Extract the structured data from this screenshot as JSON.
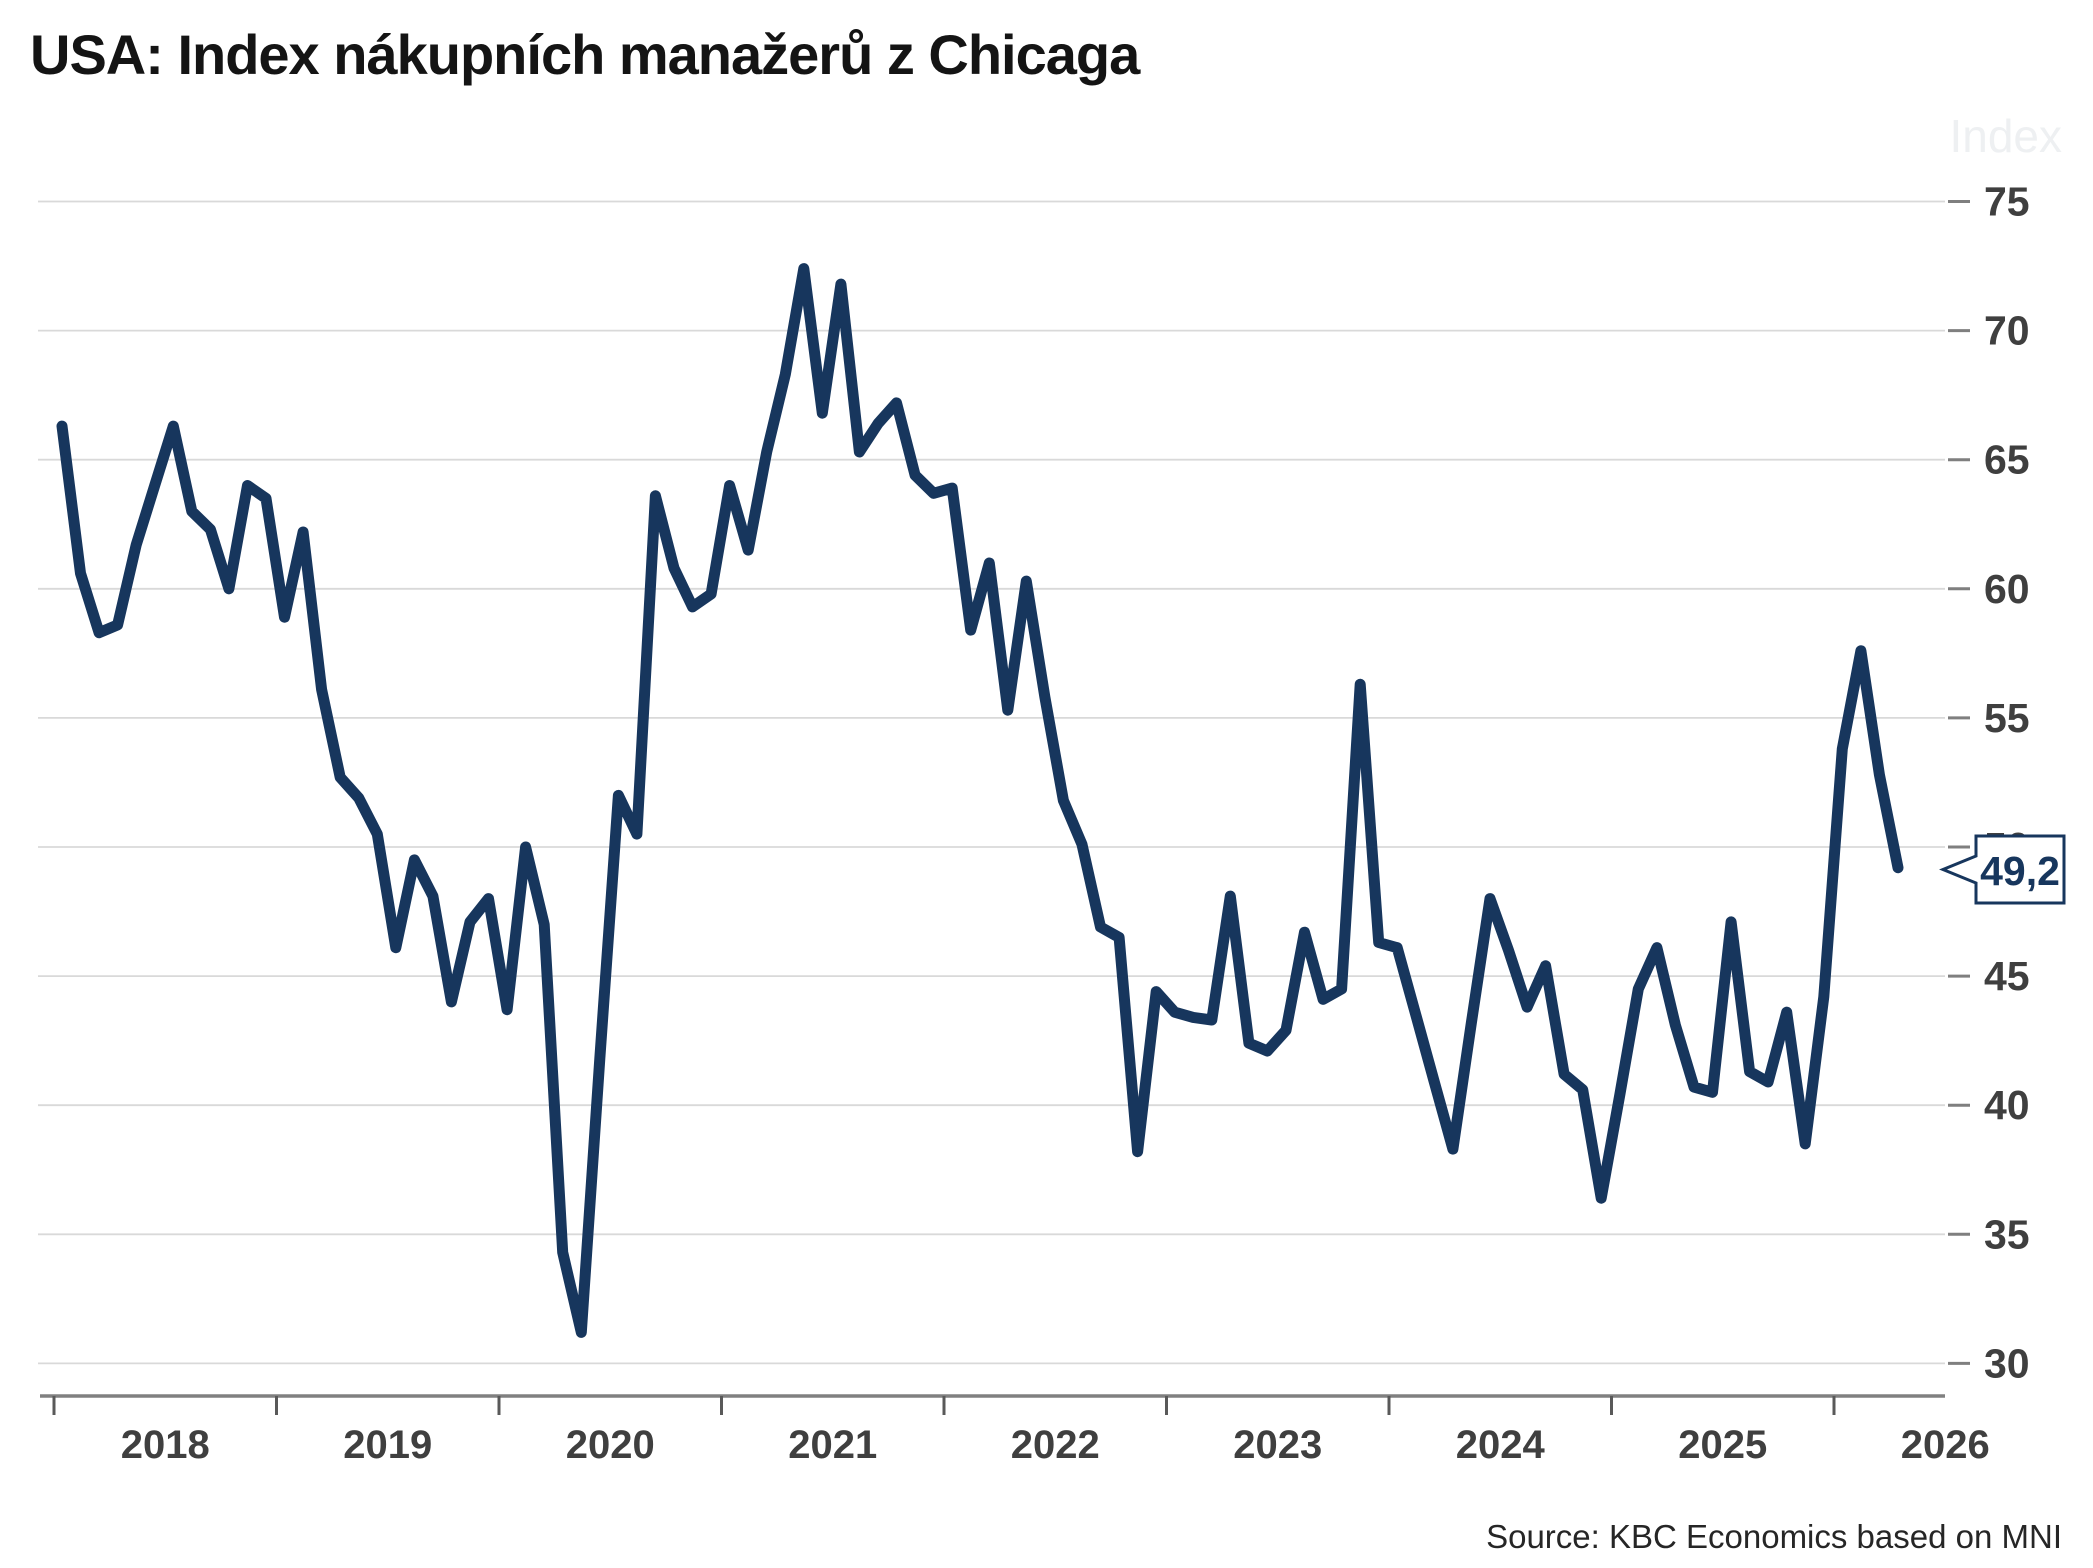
{
  "header": {
    "title": "USA: Index nákupních manažerů z Chicaga"
  },
  "chart": {
    "axis_watermark": "Index",
    "callout_label": "49,2",
    "source_text": "Source: KBC Economics based on MNI",
    "colors": {
      "line": "#17365D",
      "grid": "#D9D9D9",
      "axis": "#808080",
      "tick": "#595959",
      "labels": "#3F3F3F",
      "callout_border": "#17365D",
      "callout_fill": "#FFFFFF"
    }
  },
  "chart_data": {
    "type": "line",
    "title": "USA: Index nákupních manažerů z Chicaga",
    "ylabel": "Index",
    "xlabel": "",
    "frequency": "monthly",
    "x_start_month": "2018-01",
    "year_ticks": [
      2018,
      2019,
      2020,
      2021,
      2022,
      2023,
      2024,
      2025,
      2026
    ],
    "yticks": [
      75,
      70,
      65,
      60,
      55,
      50,
      45,
      40,
      35,
      30
    ],
    "ylim": [
      28.7,
      77.4
    ],
    "grid": "horizontal",
    "legend_position": "none",
    "last_value": 49.2,
    "last_value_label": "49,2",
    "source": "Source: KBC Economics based on MNI",
    "values": [
      66.3,
      60.6,
      58.3,
      58.6,
      61.7,
      64.0,
      66.3,
      63.0,
      62.3,
      60.0,
      64.0,
      63.5,
      58.9,
      62.2,
      56.1,
      52.7,
      51.9,
      50.5,
      46.1,
      49.5,
      48.1,
      44.0,
      47.1,
      48.0,
      43.7,
      50.0,
      47.0,
      34.3,
      31.2,
      41.8,
      52.0,
      50.5,
      63.6,
      60.8,
      59.3,
      59.8,
      64.0,
      61.5,
      65.3,
      68.3,
      72.4,
      66.8,
      71.8,
      65.3,
      66.4,
      67.2,
      64.4,
      63.7,
      63.9,
      58.4,
      61.0,
      55.3,
      60.3,
      55.8,
      51.8,
      50.1,
      46.9,
      46.5,
      38.2,
      44.4,
      43.6,
      43.4,
      43.3,
      48.1,
      42.4,
      42.1,
      42.9,
      46.7,
      44.1,
      44.5,
      56.3,
      46.3,
      46.1,
      43.5,
      40.9,
      38.3,
      43.2,
      48.0,
      46.0,
      43.8,
      45.4,
      41.2,
      40.6,
      36.4,
      40.4,
      44.5,
      46.1,
      43.1,
      40.7,
      40.5,
      47.1,
      41.3,
      40.9,
      43.6,
      38.5,
      44.2,
      53.8,
      57.6,
      52.8,
      49.2
    ]
  }
}
